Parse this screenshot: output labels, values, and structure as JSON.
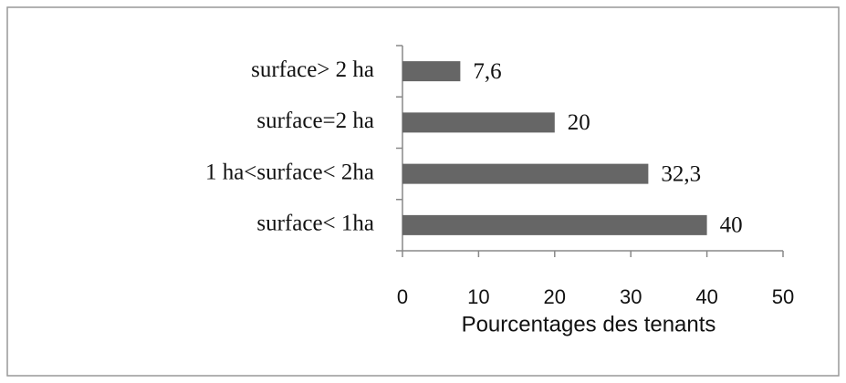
{
  "chart_data": {
    "type": "bar",
    "orientation": "horizontal",
    "categories": [
      "surface> 2 ha",
      "surface=2 ha",
      "1 ha<surface< 2ha",
      "surface< 1ha"
    ],
    "values": [
      7.6,
      20,
      32.3,
      40
    ],
    "value_labels": [
      "7,6",
      "20",
      "32,3",
      "40"
    ],
    "color": "#666666",
    "xlabel": "Pourcentages des tenants",
    "xlim": [
      0,
      50
    ],
    "xticks": [
      0,
      10,
      20,
      30,
      40,
      50
    ],
    "grid": false
  }
}
